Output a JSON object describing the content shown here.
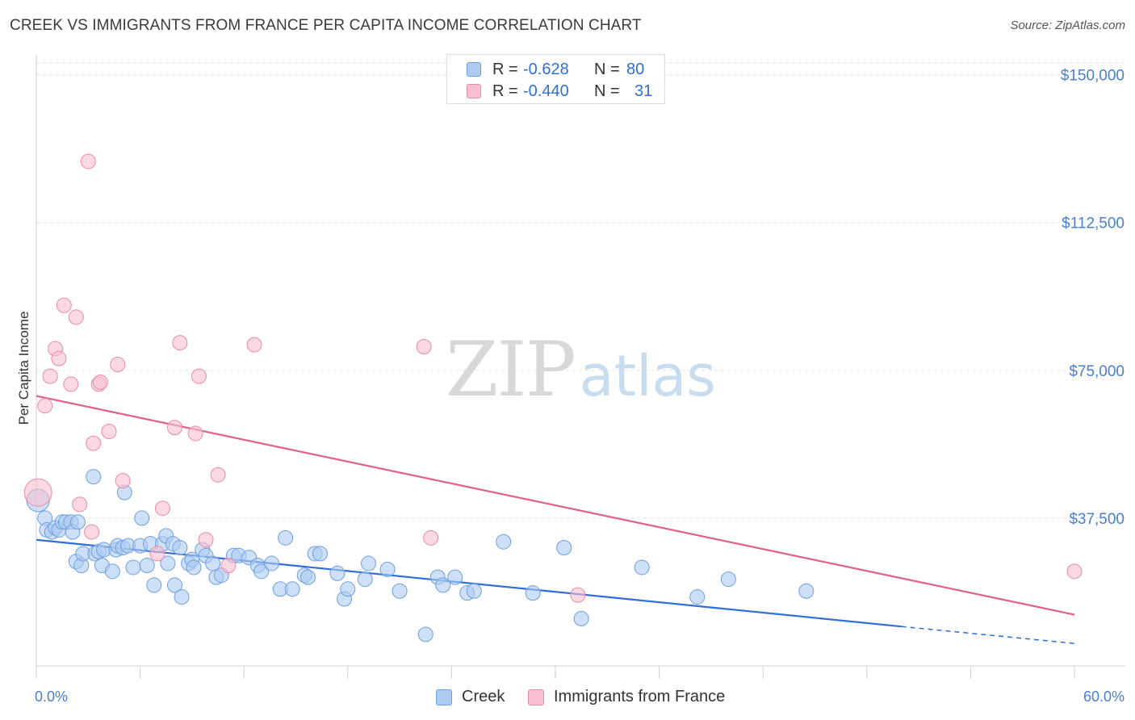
{
  "title": "CREEK VS IMMIGRANTS FROM FRANCE PER CAPITA INCOME CORRELATION CHART",
  "source": "Source: ZipAtlas.com",
  "watermark": {
    "zip": "ZIP",
    "atlas": "atlas"
  },
  "legend": {
    "rows": [
      {
        "r_label": "R =",
        "r_value": "-0.628",
        "n_label": "N =",
        "n_value": "80"
      },
      {
        "r_label": "R =",
        "r_value": "-0.440",
        "n_label": "N =",
        "n_value": "31"
      }
    ]
  },
  "colors": {
    "creek_fill": "#aecbf2",
    "creek_stroke": "#6d9fe0",
    "creek_line": "#2f6fd6",
    "france_fill": "#f7bfd0",
    "france_stroke": "#ea8aa8",
    "france_line": "#e0608a",
    "axis_text": "#4a7fd0",
    "grid": "#e3e3e3"
  },
  "chart_data": {
    "type": "scatter",
    "title": "CREEK VS IMMIGRANTS FROM FRANCE PER CAPITA INCOME CORRELATION CHART",
    "xlabel": "",
    "ylabel": "Per Capita Income",
    "xlim": [
      0,
      60
    ],
    "ylim": [
      0,
      153000
    ],
    "x_tick_labels": [
      "0.0%",
      "60.0%"
    ],
    "y_ticks": [
      37500,
      75000,
      112500,
      150000
    ],
    "y_tick_labels": [
      "$37,500",
      "$75,000",
      "$112,500",
      "$150,000"
    ],
    "grid": true,
    "legend_position": "top-center",
    "series": [
      {
        "name": "Creek",
        "r": -0.628,
        "n": 80,
        "points": [
          [
            0.1,
            42000
          ],
          [
            0.5,
            37500
          ],
          [
            0.6,
            34500
          ],
          [
            0.9,
            34000
          ],
          [
            1.1,
            35000
          ],
          [
            1.3,
            34500
          ],
          [
            1.5,
            36500
          ],
          [
            1.7,
            36500
          ],
          [
            2.0,
            36500
          ],
          [
            2.1,
            34000
          ],
          [
            2.4,
            36500
          ],
          [
            2.3,
            26500
          ],
          [
            2.6,
            25500
          ],
          [
            2.7,
            28500
          ],
          [
            3.3,
            48000
          ],
          [
            3.4,
            28500
          ],
          [
            3.6,
            29000
          ],
          [
            3.8,
            25500
          ],
          [
            3.9,
            29500
          ],
          [
            4.4,
            24000
          ],
          [
            4.6,
            29500
          ],
          [
            4.7,
            30500
          ],
          [
            5.1,
            44000
          ],
          [
            5.0,
            30000
          ],
          [
            5.3,
            30500
          ],
          [
            5.6,
            25000
          ],
          [
            6.0,
            30500
          ],
          [
            6.1,
            37500
          ],
          [
            6.4,
            25500
          ],
          [
            6.8,
            20500
          ],
          [
            6.6,
            31000
          ],
          [
            7.3,
            31000
          ],
          [
            7.5,
            33000
          ],
          [
            7.6,
            26000
          ],
          [
            7.9,
            31000
          ],
          [
            8.0,
            20500
          ],
          [
            8.3,
            30000
          ],
          [
            8.4,
            17500
          ],
          [
            8.8,
            26000
          ],
          [
            9.0,
            27000
          ],
          [
            9.1,
            25000
          ],
          [
            9.6,
            29500
          ],
          [
            9.8,
            28000
          ],
          [
            10.2,
            26000
          ],
          [
            10.4,
            22500
          ],
          [
            10.7,
            23000
          ],
          [
            11.4,
            28000
          ],
          [
            11.7,
            28000
          ],
          [
            12.3,
            27500
          ],
          [
            12.8,
            25500
          ],
          [
            13.0,
            24000
          ],
          [
            13.6,
            26000
          ],
          [
            14.1,
            19500
          ],
          [
            14.4,
            32500
          ],
          [
            14.8,
            19500
          ],
          [
            15.5,
            23000
          ],
          [
            15.7,
            22500
          ],
          [
            16.1,
            28500
          ],
          [
            16.4,
            28500
          ],
          [
            17.4,
            23500
          ],
          [
            17.8,
            17000
          ],
          [
            18.0,
            19500
          ],
          [
            19.2,
            26000
          ],
          [
            19.0,
            22000
          ],
          [
            20.3,
            24500
          ],
          [
            21.0,
            19000
          ],
          [
            22.5,
            8000
          ],
          [
            23.2,
            22500
          ],
          [
            23.5,
            20500
          ],
          [
            24.2,
            22500
          ],
          [
            24.9,
            18500
          ],
          [
            25.3,
            19000
          ],
          [
            27.0,
            31500
          ],
          [
            28.7,
            18500
          ],
          [
            30.5,
            30000
          ],
          [
            31.5,
            12000
          ],
          [
            38.2,
            17500
          ],
          [
            40.0,
            22000
          ],
          [
            44.5,
            19000
          ],
          [
            35.0,
            25000
          ]
        ],
        "trend": {
          "x": [
            0,
            50,
            60
          ],
          "y": [
            32000,
            10000,
            5700
          ],
          "dashed_from_x": 50
        }
      },
      {
        "name": "Immigrants from France",
        "r": -0.44,
        "n": 31,
        "points": [
          [
            0.1,
            44000
          ],
          [
            0.5,
            66000
          ],
          [
            0.8,
            73500
          ],
          [
            1.1,
            80500
          ],
          [
            1.3,
            78000
          ],
          [
            1.6,
            91500
          ],
          [
            2.0,
            71500
          ],
          [
            2.3,
            88500
          ],
          [
            2.5,
            41000
          ],
          [
            3.0,
            128000
          ],
          [
            3.2,
            34000
          ],
          [
            3.3,
            56500
          ],
          [
            3.6,
            71500
          ],
          [
            3.7,
            72000
          ],
          [
            4.2,
            59500
          ],
          [
            4.7,
            76500
          ],
          [
            5.0,
            47000
          ],
          [
            7.0,
            28500
          ],
          [
            7.3,
            40000
          ],
          [
            8.0,
            60500
          ],
          [
            8.3,
            82000
          ],
          [
            9.2,
            59000
          ],
          [
            9.4,
            73500
          ],
          [
            9.8,
            32000
          ],
          [
            10.5,
            48500
          ],
          [
            11.1,
            25500
          ],
          [
            12.6,
            81500
          ],
          [
            22.4,
            81000
          ],
          [
            22.8,
            32500
          ],
          [
            31.3,
            18000
          ],
          [
            60.0,
            24000
          ]
        ],
        "trend": {
          "x": [
            0,
            60
          ],
          "y": [
            68500,
            13000
          ]
        }
      }
    ]
  },
  "bottom_legend": [
    {
      "label": "Creek"
    },
    {
      "label": "Immigrants from France"
    }
  ]
}
